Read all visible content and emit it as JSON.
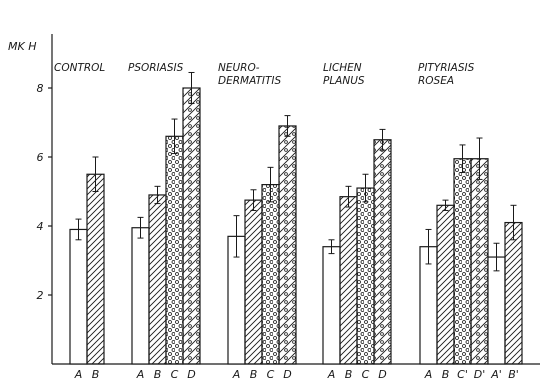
{
  "chart_data": {
    "type": "bar",
    "ylabel": "MK H",
    "ylim": [
      0,
      9
    ],
    "yticks": [
      2,
      4,
      6,
      8
    ],
    "groups": [
      {
        "name": "CONTROL",
        "name_lines": [
          "CONTROL"
        ],
        "bars": [
          {
            "label": "A",
            "value": 3.9,
            "err": 0.3,
            "pattern": "plain"
          },
          {
            "label": "B",
            "value": 5.5,
            "err": 0.5,
            "pattern": "hatch"
          }
        ]
      },
      {
        "name": "PSORIASIS",
        "name_lines": [
          "PSORIASIS"
        ],
        "bars": [
          {
            "label": "A",
            "value": 3.95,
            "err": 0.3,
            "pattern": "plain"
          },
          {
            "label": "B",
            "value": 4.9,
            "err": 0.25,
            "pattern": "hatch"
          },
          {
            "label": "C",
            "value": 6.6,
            "err": 0.5,
            "pattern": "dots"
          },
          {
            "label": "D",
            "value": 8.0,
            "err": 0.45,
            "pattern": "crossdots"
          }
        ]
      },
      {
        "name": "NEURO-DERMATITIS",
        "name_lines": [
          "NEURO-",
          "DERMATITIS"
        ],
        "bars": [
          {
            "label": "A",
            "value": 3.7,
            "err": 0.6,
            "pattern": "plain"
          },
          {
            "label": "B",
            "value": 4.75,
            "err": 0.3,
            "pattern": "hatch"
          },
          {
            "label": "C",
            "value": 5.2,
            "err": 0.5,
            "pattern": "dots"
          },
          {
            "label": "D",
            "value": 6.9,
            "err": 0.3,
            "pattern": "crossdots"
          }
        ]
      },
      {
        "name": "LICHEN PLANUS",
        "name_lines": [
          "LICHEN",
          "PLANUS"
        ],
        "bars": [
          {
            "label": "A",
            "value": 3.4,
            "err": 0.2,
            "pattern": "plain"
          },
          {
            "label": "B",
            "value": 4.85,
            "err": 0.3,
            "pattern": "hatch"
          },
          {
            "label": "C",
            "value": 5.1,
            "err": 0.4,
            "pattern": "dots"
          },
          {
            "label": "D",
            "value": 6.5,
            "err": 0.3,
            "pattern": "crossdots"
          }
        ]
      },
      {
        "name": "PITYRIASIS ROSEA",
        "name_lines": [
          "PITYRIASIS",
          "ROSEA"
        ],
        "bars": [
          {
            "label": "A",
            "value": 3.4,
            "err": 0.5,
            "pattern": "plain"
          },
          {
            "label": "B",
            "value": 4.6,
            "err": 0.15,
            "pattern": "hatch"
          },
          {
            "label": "C'",
            "value": 5.95,
            "err": 0.4,
            "pattern": "dots"
          },
          {
            "label": "D'",
            "value": 5.95,
            "err": 0.6,
            "pattern": "crossdots"
          },
          {
            "label": "A'",
            "value": 3.1,
            "err": 0.4,
            "pattern": "plain"
          },
          {
            "label": "B'",
            "value": 4.1,
            "err": 0.5,
            "pattern": "hatch"
          }
        ]
      }
    ],
    "colors": {
      "ink": "#1a1a1a",
      "background": "#ffffff"
    }
  }
}
